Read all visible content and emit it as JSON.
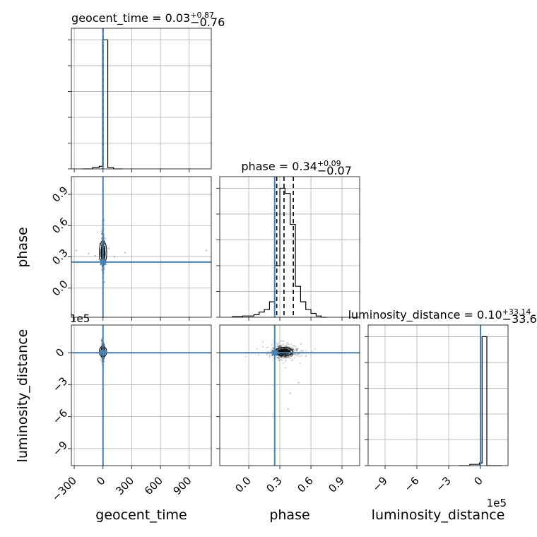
{
  "chart_data": {
    "type": "corner",
    "parameters": [
      "geocent_time",
      "phase",
      "luminosity_distance"
    ],
    "truths": {
      "geocent_time": 0,
      "phase": 0.25,
      "luminosity_distance": 0
    },
    "colors": {
      "truth": "#4682b4",
      "hist": "#000000",
      "scatter": "#000000"
    },
    "grid": true,
    "panels": [
      {
        "id": "hist-geocent_time",
        "kind": "histogram",
        "param": "geocent_time",
        "title_main": "geocent_time = 0.03",
        "title_plus": "+0.87",
        "title_minus": "−0.76",
        "xlim": [
          -330,
          1130
        ],
        "xticks": [
          -300,
          0,
          300,
          600,
          900
        ],
        "bin_edges": [
          -220,
          -110,
          -40,
          -5,
          50,
          110,
          200
        ],
        "counts": [
          0,
          1,
          2,
          100,
          1,
          0
        ],
        "quantiles": [
          -0.73,
          0.03,
          0.9
        ]
      },
      {
        "id": "scatter-geocent_time-phase",
        "kind": "scatter",
        "x": "geocent_time",
        "y": "phase",
        "xlim": [
          -330,
          1130
        ],
        "ylim": [
          -0.28,
          1.07
        ],
        "xticks": [
          -300,
          0,
          300,
          600,
          900
        ],
        "yticks": [
          0.0,
          0.3,
          0.6,
          0.9
        ],
        "core": {
          "x": 0,
          "y": 0.34,
          "sx": 7,
          "sy": 0.07
        },
        "outliers": [
          [
            -280,
            0.36
          ],
          [
            -150,
            0.33
          ],
          [
            -80,
            0.31
          ],
          [
            120,
            0.3
          ],
          [
            230,
            0.34
          ],
          [
            1080,
            0.36
          ],
          [
            60,
            0.38
          ],
          [
            0,
            0.72
          ],
          [
            0,
            -0.05
          ]
        ]
      },
      {
        "id": "hist-phase",
        "kind": "histogram",
        "param": "phase",
        "title_main": "phase = 0.34",
        "title_plus": "+0.09",
        "title_minus": "−0.07",
        "xlim": [
          -0.28,
          1.07
        ],
        "xticks": [
          0.0,
          0.3,
          0.6,
          0.9
        ],
        "bin_edges": [
          -0.16,
          -0.06,
          0.05,
          0.1,
          0.15,
          0.2,
          0.25,
          0.3,
          0.35,
          0.4,
          0.45,
          0.5,
          0.55,
          0.6,
          0.65,
          0.7,
          0.75
        ],
        "counts": [
          0.5,
          1,
          2,
          4,
          6,
          12,
          40,
          100,
          96,
          72,
          24,
          12,
          6,
          3,
          1,
          0
        ],
        "quantiles": [
          0.27,
          0.34,
          0.43
        ]
      },
      {
        "id": "scatter-geocent_time-luminosity_distance",
        "kind": "scatter",
        "x": "geocent_time",
        "y": "luminosity_distance",
        "xlim": [
          -330,
          1130
        ],
        "ylim": [
          -10.6,
          2.6
        ],
        "xticks": [
          -300,
          0,
          300,
          600,
          900
        ],
        "yticks": [
          0,
          -3,
          -6,
          -9
        ],
        "ytick_labels": [
          "0",
          "−3",
          "−6",
          "−9"
        ],
        "offset_text": "1e5",
        "core": {
          "x": 0,
          "y": 0.1,
          "sx": 6,
          "sy": 0.3
        },
        "outliers": [
          [
            -60,
            0.0
          ],
          [
            70,
            0.0
          ]
        ]
      },
      {
        "id": "scatter-phase-luminosity_distance",
        "kind": "scatter",
        "x": "phase",
        "y": "luminosity_distance",
        "xlim": [
          -0.28,
          1.07
        ],
        "ylim": [
          -10.6,
          2.6
        ],
        "xticks": [
          0.0,
          0.3,
          0.6,
          0.9
        ],
        "yticks": [
          0,
          -3,
          -6,
          -9
        ],
        "core": {
          "x": 0.34,
          "y": 0.1,
          "sx": 0.05,
          "sy": 0.25
        },
        "outliers": [
          [
            0.4,
            -3.8
          ],
          [
            0.48,
            -2.8
          ],
          [
            0.38,
            -5.3
          ],
          [
            0.42,
            -0.7
          ],
          [
            0.55,
            -0.3
          ],
          [
            0.25,
            -0.2
          ]
        ]
      },
      {
        "id": "hist-luminosity_distance",
        "kind": "histogram",
        "param": "luminosity_distance",
        "title_main": "luminosity_distance = 0.10",
        "title_plus": "+33.14",
        "title_minus": "−33.62",
        "xlim": [
          -10.6,
          2.6
        ],
        "xticks": [
          -9,
          -6,
          -3,
          0
        ],
        "xtick_labels": [
          "−9",
          "−6",
          "−3",
          "0"
        ],
        "offset_text": "1e5",
        "bin_edges": [
          -2.0,
          -1.0,
          -0.1,
          0.15,
          0.6,
          1.0,
          2.0
        ],
        "counts": [
          0,
          1,
          2,
          100,
          0,
          0
        ],
        "quantiles": [
          -0.0003,
          1e-06,
          0.0003
        ]
      }
    ],
    "axis_labels": {
      "bottom": [
        "geocent_time",
        "phase",
        "luminosity_distance"
      ],
      "left": [
        "phase",
        "luminosity_distance"
      ]
    }
  }
}
